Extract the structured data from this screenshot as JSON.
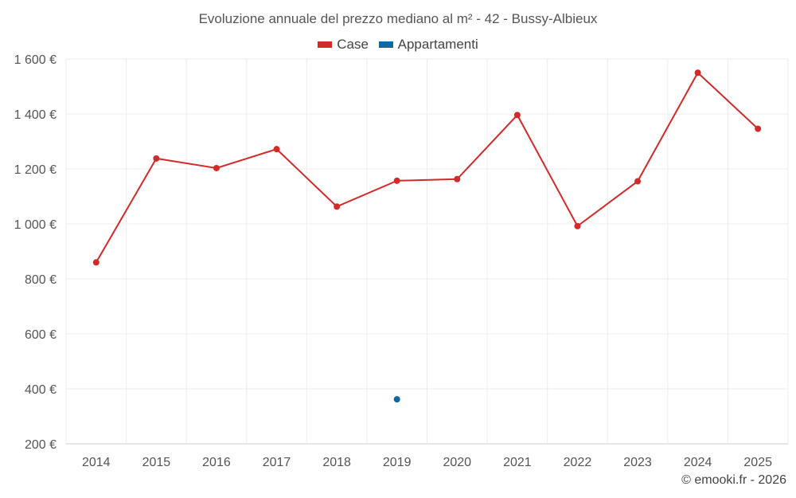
{
  "chart_data": {
    "type": "line",
    "title": "Evoluzione annuale del prezzo mediano al m² - 42 - Bussy-Albieux",
    "categories": [
      "2014",
      "2015",
      "2016",
      "2017",
      "2018",
      "2019",
      "2020",
      "2021",
      "2022",
      "2023",
      "2024",
      "2025"
    ],
    "series": [
      {
        "name": "Case",
        "color": "#d42a2a",
        "values": [
          860,
          1238,
          1203,
          1272,
          1063,
          1157,
          1163,
          1396,
          992,
          1155,
          1550,
          1346
        ]
      },
      {
        "name": "Appartamenti",
        "color": "#0a6aa1",
        "values": [
          null,
          null,
          null,
          null,
          null,
          362,
          null,
          null,
          null,
          null,
          null,
          null
        ]
      }
    ],
    "ylim": [
      200,
      1600
    ],
    "yticks": [
      200,
      400,
      600,
      800,
      1000,
      1200,
      1400,
      1600
    ],
    "ytick_labels": [
      "200 €",
      "400 €",
      "600 €",
      "800 €",
      "1 000 €",
      "1 200 €",
      "1 400 €",
      "1 600 €"
    ],
    "grid": true,
    "legend_position": "top-center"
  },
  "credit": "© emooki.fr - 2026"
}
